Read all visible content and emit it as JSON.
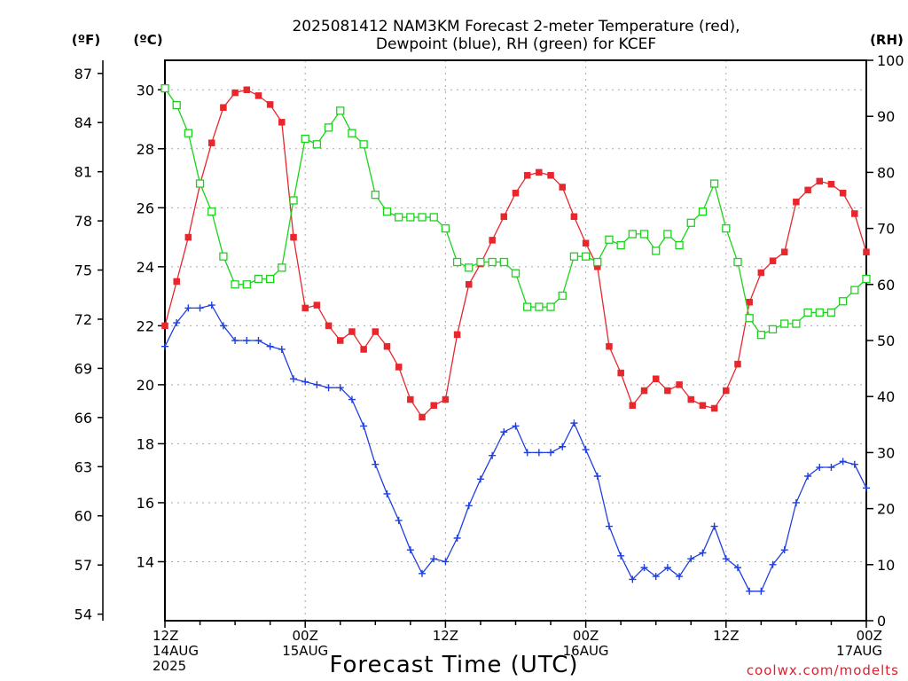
{
  "chart_data": {
    "type": "line",
    "title_line1": "2025081412 NAM3KM Forecast 2-meter Temperature (red),",
    "title_line2": "Dewpoint (blue), RH (green) for KCEF",
    "xlabel": "Forecast Time (UTC)",
    "credit": "coolwx.com/modelts",
    "axes": {
      "left_f": {
        "label": "(ºF)",
        "ticks": [
          54,
          57,
          60,
          63,
          66,
          69,
          72,
          75,
          78,
          81,
          84,
          87
        ]
      },
      "left_c": {
        "label": "(ºC)",
        "range": [
          12,
          31
        ],
        "ticks": [
          14,
          16,
          18,
          20,
          22,
          24,
          26,
          28,
          30
        ]
      },
      "right_rh": {
        "label": "(RH)",
        "range": [
          0,
          100
        ],
        "ticks": [
          0,
          10,
          20,
          30,
          40,
          50,
          60,
          70,
          80,
          90,
          100
        ]
      }
    },
    "x_ticks": [
      {
        "hour": 0,
        "line1": "12Z",
        "line2": "14AUG",
        "line3": "2025"
      },
      {
        "hour": 12,
        "line1": "00Z",
        "line2": "15AUG",
        "line3": ""
      },
      {
        "hour": 24,
        "line1": "12Z",
        "line2": "",
        "line3": ""
      },
      {
        "hour": 36,
        "line1": "00Z",
        "line2": "16AUG",
        "line3": ""
      },
      {
        "hour": 48,
        "line1": "12Z",
        "line2": "",
        "line3": ""
      },
      {
        "hour": 60,
        "line1": "00Z",
        "line2": "17AUG",
        "line3": ""
      }
    ],
    "x_range_hours": [
      0,
      60
    ],
    "grid": true,
    "series": [
      {
        "name": "Temperature",
        "axis": "c",
        "color": "#e8262c",
        "marker": "filled-square",
        "values": [
          22.0,
          23.5,
          25.0,
          26.8,
          28.2,
          29.4,
          29.9,
          30.0,
          29.8,
          29.5,
          28.9,
          25.0,
          22.6,
          22.7,
          22.0,
          21.5,
          21.8,
          21.2,
          21.8,
          21.3,
          20.6,
          19.5,
          18.9,
          19.3,
          19.5,
          21.7,
          23.4,
          24.1,
          24.9,
          25.7,
          26.5,
          27.1,
          27.2,
          27.1,
          26.7,
          25.7,
          24.8,
          24.0,
          21.3,
          20.4,
          19.3,
          19.8,
          20.2,
          19.8,
          20.0,
          19.5,
          19.3,
          19.2,
          19.8,
          20.7,
          22.8,
          23.8,
          24.2,
          24.5,
          26.2,
          26.6,
          26.9,
          26.8,
          26.5,
          25.8,
          24.5
        ]
      },
      {
        "name": "Dewpoint",
        "axis": "c",
        "color": "#1f3fe0",
        "marker": "plus",
        "values": [
          21.3,
          22.1,
          22.6,
          22.6,
          22.7,
          22.0,
          21.5,
          21.5,
          21.5,
          21.3,
          21.2,
          20.2,
          20.1,
          20.0,
          19.9,
          19.9,
          19.5,
          18.6,
          17.3,
          16.3,
          15.4,
          14.4,
          13.6,
          14.1,
          14.0,
          14.8,
          15.9,
          16.8,
          17.6,
          18.4,
          18.6,
          17.7,
          17.7,
          17.7,
          17.9,
          18.7,
          17.8,
          16.9,
          15.2,
          14.2,
          13.4,
          13.8,
          13.5,
          13.8,
          13.5,
          14.1,
          14.3,
          15.2,
          14.1,
          13.8,
          13.0,
          13.0,
          13.9,
          14.4,
          16.0,
          16.9,
          17.2,
          17.2,
          17.4,
          17.3,
          16.5
        ]
      },
      {
        "name": "RH",
        "axis": "rh",
        "color": "#1ad41a",
        "marker": "open-square",
        "values": [
          95,
          92,
          87,
          78,
          73,
          65,
          60,
          60,
          61,
          61,
          63,
          75,
          86,
          85,
          88,
          91,
          87,
          85,
          76,
          73,
          72,
          72,
          72,
          72,
          70,
          64,
          63,
          64,
          64,
          64,
          62,
          56,
          56,
          56,
          58,
          65,
          65,
          64,
          68,
          67,
          69,
          69,
          66,
          69,
          67,
          71,
          73,
          78,
          70,
          64,
          54,
          51,
          52,
          53,
          53,
          55,
          55,
          55,
          57,
          59,
          61
        ]
      }
    ]
  }
}
